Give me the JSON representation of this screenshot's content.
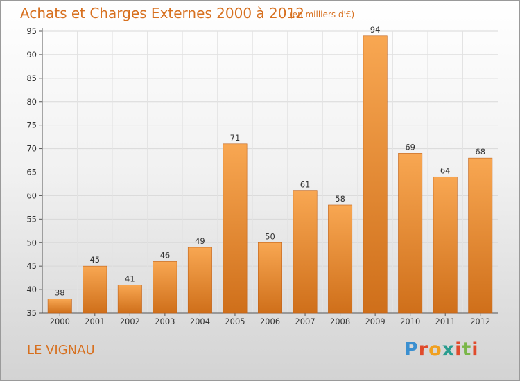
{
  "header": {
    "title": "Achats et Charges Externes 2000 à 2012",
    "unit": "(en milliers d'€)"
  },
  "footer": {
    "commune": "LE VIGNAU",
    "brand": "Proxiti",
    "brand_colors": [
      "#3a8fd0",
      "#e04a2b",
      "#f0a020",
      "#2a9d8f",
      "#e04a2b",
      "#7ab648",
      "#e04a2b"
    ]
  },
  "colors": {
    "bar_light": "#f8a752",
    "bar_dark": "#cf6f1a",
    "accent": "#d7701f"
  },
  "chart_data": {
    "type": "bar",
    "title": "Achats et Charges Externes 2000 à 2012",
    "xlabel": "",
    "ylabel": "",
    "categories": [
      "2000",
      "2001",
      "2002",
      "2003",
      "2004",
      "2005",
      "2006",
      "2007",
      "2008",
      "2009",
      "2010",
      "2011",
      "2012"
    ],
    "values": [
      38,
      45,
      41,
      46,
      49,
      71,
      50,
      61,
      58,
      94,
      69,
      64,
      68
    ],
    "ylim": [
      35,
      95
    ],
    "yticks": [
      35,
      40,
      45,
      50,
      55,
      60,
      65,
      70,
      75,
      80,
      85,
      90,
      95
    ],
    "grid": true
  }
}
